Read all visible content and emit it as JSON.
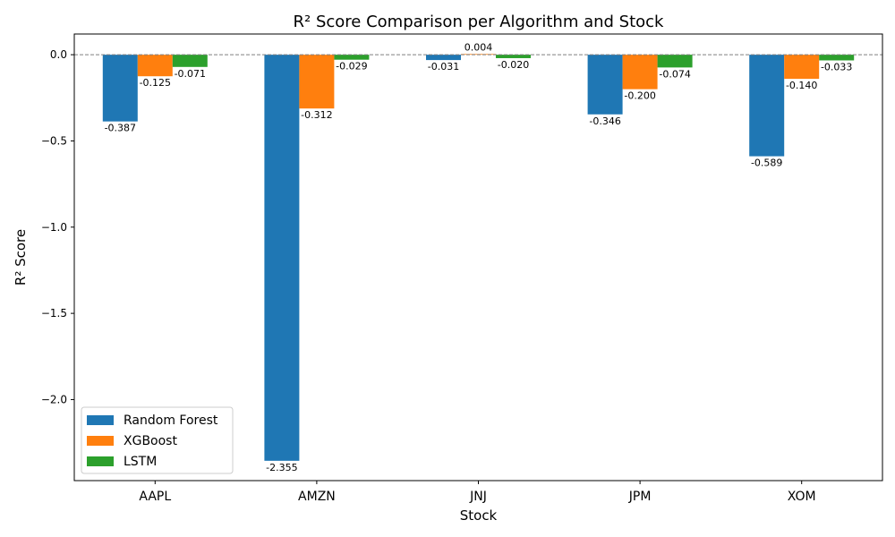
{
  "chart_data": {
    "type": "bar",
    "title": "R² Score Comparison per Algorithm and Stock",
    "xlabel": "Stock",
    "ylabel": "R² Score",
    "categories": [
      "AAPL",
      "AMZN",
      "JNJ",
      "JPM",
      "XOM"
    ],
    "series": [
      {
        "name": "Random Forest",
        "color": "#1f77b4",
        "values": [
          -0.387,
          -2.355,
          -0.031,
          -0.346,
          -0.589
        ]
      },
      {
        "name": "XGBoost",
        "color": "#ff7f0e",
        "values": [
          -0.125,
          -0.312,
          0.004,
          -0.2,
          -0.14
        ]
      },
      {
        "name": "LSTM",
        "color": "#2ca02c",
        "values": [
          -0.071,
          -0.029,
          -0.02,
          -0.074,
          -0.033
        ]
      }
    ],
    "ylim": [
      -2.47,
      0.12
    ],
    "yticks": [
      0.0,
      -0.5,
      -1.0,
      -1.5,
      -2.0
    ],
    "ytick_labels": [
      "0.0",
      "−0.5",
      "−1.0",
      "−1.5",
      "−2.0"
    ],
    "reference_line": {
      "y": 0,
      "style": "dashed",
      "color": "#808080"
    },
    "legend_position": "lower-left",
    "grid": false
  }
}
